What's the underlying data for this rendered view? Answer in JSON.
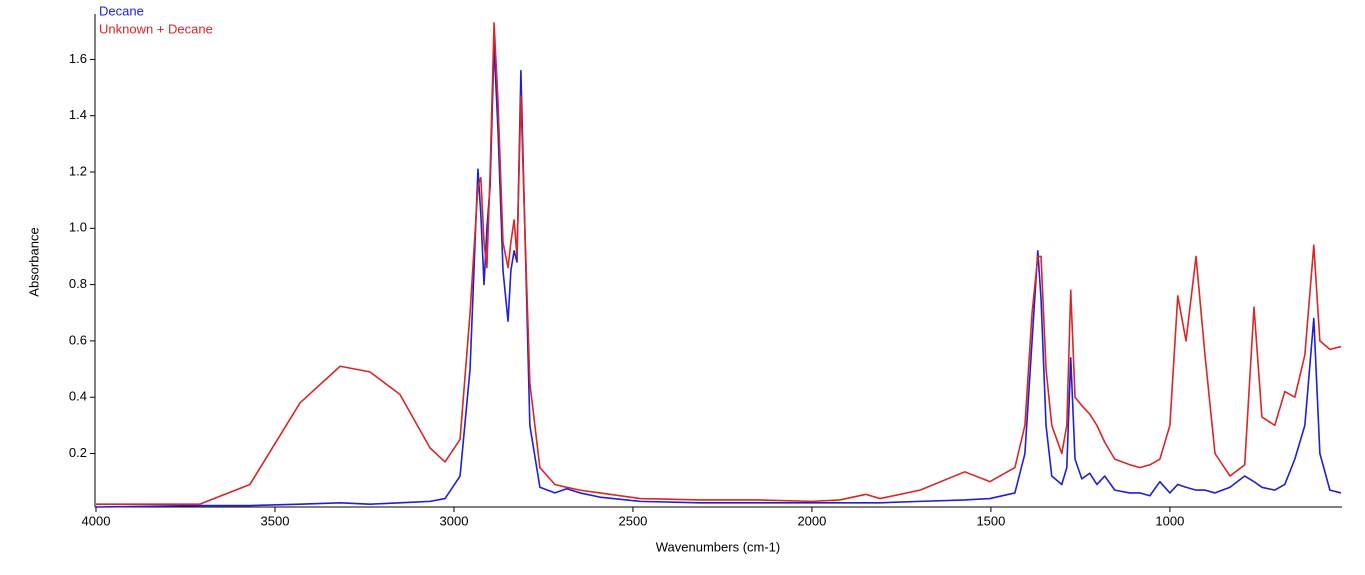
{
  "chart_data": {
    "type": "line",
    "xlabel": "Wavenumbers (cm-1)",
    "ylabel": "Absorbance",
    "legend": "upper left",
    "xlim": [
      4000,
      522
    ],
    "ylim": [
      0.01,
      1.74
    ],
    "xticks": [
      4000,
      3500,
      3000,
      2500,
      2000,
      1500,
      1000
    ],
    "yticks": [
      0.2,
      0.4,
      0.6,
      0.8,
      {
        "value": 1,
        "label": "1.0"
      },
      1.2,
      1.4,
      1.6
    ],
    "x": [
      4000,
      3710,
      3570,
      3430,
      3318,
      3235,
      3151,
      3067,
      3025,
      2983,
      2955,
      2933,
      2925,
      2916,
      2908,
      2899,
      2888,
      2877,
      2863,
      2849,
      2841,
      2832,
      2824,
      2813,
      2802,
      2788,
      2760,
      2718,
      2685,
      2648,
      2592,
      2480,
      2313,
      2145,
      2000,
      1922,
      1849,
      1810,
      1698,
      1573,
      1503,
      1433,
      1405,
      1385,
      1369,
      1360,
      1346,
      1330,
      1302,
      1288,
      1277,
      1265,
      1246,
      1224,
      1204,
      1182,
      1154,
      1112,
      1084,
      1056,
      1028,
      1000,
      978,
      955,
      927,
      902,
      874,
      832,
      791,
      765,
      743,
      707,
      679,
      651,
      623,
      598,
      581,
      553,
      522
    ],
    "series": [
      {
        "name": "Decane",
        "color": "#1f1fd6",
        "values": [
          0.01,
          0.015,
          0.015,
          0.02,
          0.025,
          0.02,
          0.025,
          0.03,
          0.04,
          0.12,
          0.5,
          1.21,
          1.05,
          0.8,
          1.0,
          1.15,
          1.65,
          1.35,
          0.85,
          0.67,
          0.85,
          0.92,
          0.88,
          1.56,
          1.0,
          0.3,
          0.08,
          0.06,
          0.075,
          0.06,
          0.045,
          0.03,
          0.025,
          0.025,
          0.025,
          0.025,
          0.025,
          0.025,
          0.03,
          0.035,
          0.04,
          0.06,
          0.2,
          0.6,
          0.92,
          0.75,
          0.3,
          0.12,
          0.09,
          0.15,
          0.54,
          0.18,
          0.11,
          0.13,
          0.09,
          0.12,
          0.07,
          0.06,
          0.06,
          0.05,
          0.1,
          0.06,
          0.09,
          0.08,
          0.07,
          0.07,
          0.06,
          0.08,
          0.12,
          0.1,
          0.08,
          0.07,
          0.09,
          0.18,
          0.3,
          0.68,
          0.2,
          0.07,
          0.06
        ]
      },
      {
        "name": "Unknown + Decane",
        "color": "#d92626",
        "values": [
          0.02,
          0.02,
          0.09,
          0.38,
          0.51,
          0.49,
          0.41,
          0.22,
          0.17,
          0.25,
          0.7,
          1.15,
          1.18,
          0.95,
          0.86,
          1.2,
          1.73,
          1.45,
          0.95,
          0.86,
          0.95,
          1.03,
          0.9,
          1.47,
          1.0,
          0.45,
          0.15,
          0.09,
          0.08,
          0.07,
          0.06,
          0.04,
          0.035,
          0.035,
          0.03,
          0.035,
          0.055,
          0.04,
          0.07,
          0.135,
          0.1,
          0.15,
          0.3,
          0.7,
          0.9,
          0.9,
          0.5,
          0.3,
          0.2,
          0.3,
          0.78,
          0.4,
          0.37,
          0.34,
          0.3,
          0.24,
          0.18,
          0.16,
          0.15,
          0.16,
          0.18,
          0.3,
          0.76,
          0.6,
          0.9,
          0.55,
          0.2,
          0.12,
          0.16,
          0.72,
          0.33,
          0.3,
          0.42,
          0.4,
          0.55,
          0.94,
          0.6,
          0.57,
          0.58
        ]
      }
    ]
  }
}
